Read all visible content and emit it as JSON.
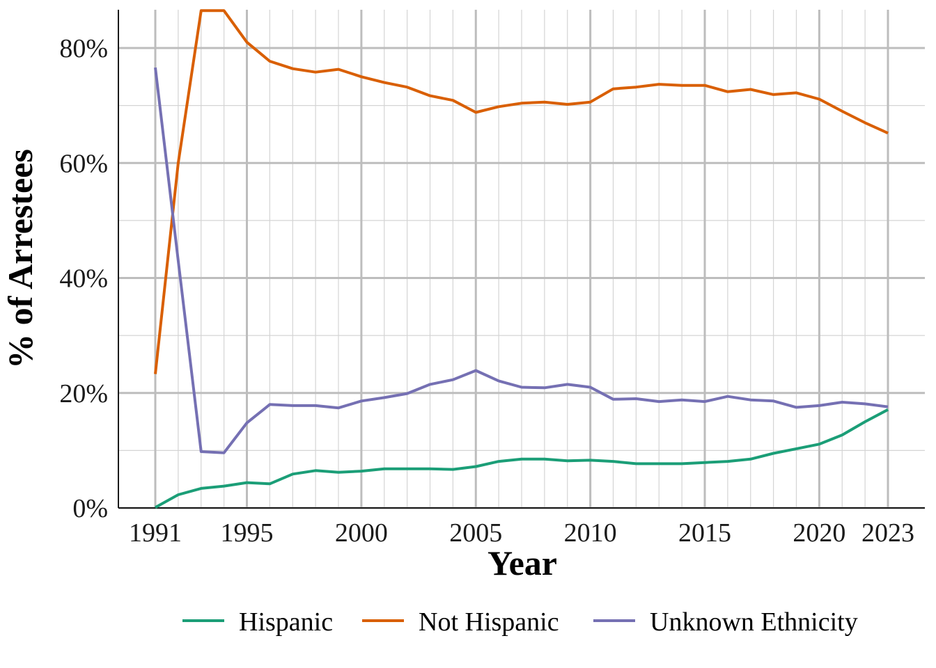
{
  "chart_data": {
    "type": "line",
    "xlabel": "Year",
    "ylabel": "% of Arrestees",
    "x_ticks": [
      "1991",
      "1995",
      "2000",
      "2005",
      "2010",
      "2015",
      "2020",
      "2023"
    ],
    "y_ticks": [
      "0%",
      "20%",
      "40%",
      "60%",
      "80%"
    ],
    "xlim": [
      1991,
      2023
    ],
    "ylim": [
      0,
      86.5
    ],
    "grid": true,
    "legend_position": "bottom",
    "x": [
      1991,
      1992,
      1993,
      1994,
      1995,
      1996,
      1997,
      1998,
      1999,
      2000,
      2001,
      2002,
      2003,
      2004,
      2005,
      2006,
      2007,
      2008,
      2009,
      2010,
      2011,
      2012,
      2013,
      2014,
      2015,
      2016,
      2017,
      2018,
      2019,
      2020,
      2021,
      2022,
      2023
    ],
    "series": [
      {
        "name": "Hispanic",
        "color": "#1b9e77",
        "values": [
          0.1,
          2.3,
          3.4,
          3.8,
          4.4,
          4.2,
          5.9,
          6.5,
          6.2,
          6.4,
          6.8,
          6.8,
          6.8,
          6.7,
          7.2,
          8.1,
          8.5,
          8.5,
          8.2,
          8.3,
          8.1,
          7.7,
          7.7,
          7.7,
          7.9,
          8.1,
          8.5,
          9.5,
          10.3,
          11.1,
          12.7,
          15.0,
          17.1
        ]
      },
      {
        "name": "Not Hispanic",
        "color": "#d95f02",
        "values": [
          23.3,
          60.0,
          86.5,
          86.5,
          81.0,
          77.7,
          76.4,
          75.8,
          76.3,
          75.0,
          74.0,
          73.2,
          71.7,
          70.9,
          68.8,
          69.8,
          70.4,
          70.6,
          70.2,
          70.6,
          72.9,
          73.2,
          73.7,
          73.5,
          73.5,
          72.4,
          72.8,
          71.9,
          72.2,
          71.1,
          69.0,
          67.0,
          65.2
        ]
      },
      {
        "name": "Unknown Ethnicity",
        "color": "#7570b3",
        "values": [
          76.6,
          43.0,
          9.8,
          9.6,
          14.8,
          18.0,
          17.8,
          17.8,
          17.4,
          18.6,
          19.2,
          19.9,
          21.5,
          22.3,
          23.9,
          22.1,
          21.0,
          20.9,
          21.5,
          21.0,
          18.9,
          19.0,
          18.5,
          18.8,
          18.5,
          19.4,
          18.8,
          18.6,
          17.5,
          17.8,
          18.4,
          18.1,
          17.6
        ]
      }
    ]
  }
}
